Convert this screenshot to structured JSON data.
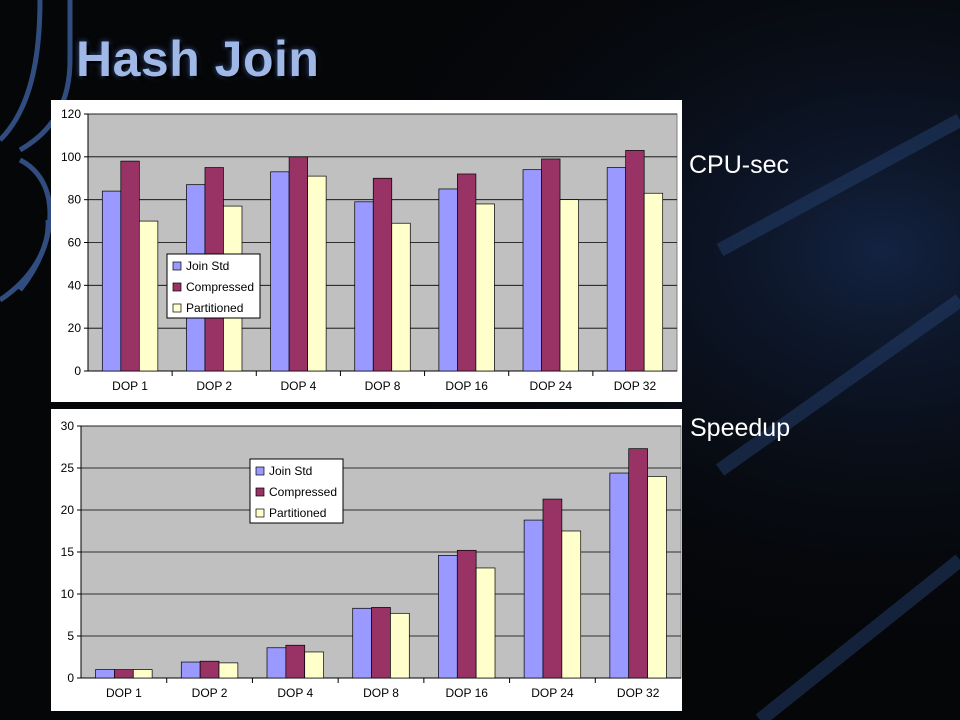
{
  "slide": {
    "title": "Hash Join",
    "label_cpu": "CPU-sec",
    "label_speedup": "Speedup"
  },
  "colors": {
    "background": "#050608",
    "plot_area": "#c0c0c0",
    "series": [
      "#9999ff",
      "#993366",
      "#ffffcc"
    ]
  },
  "chart_data": [
    {
      "type": "bar",
      "categories": [
        "DOP 1",
        "DOP 2",
        "DOP 4",
        "DOP 8",
        "DOP 16",
        "DOP 24",
        "DOP 32"
      ],
      "series": [
        {
          "name": "Join Std",
          "values": [
            84,
            87,
            93,
            79,
            85,
            94,
            95
          ]
        },
        {
          "name": "Compressed",
          "values": [
            98,
            95,
            100,
            90,
            92,
            99,
            103
          ]
        },
        {
          "name": "Partitioned",
          "values": [
            70,
            77,
            91,
            69,
            78,
            80,
            83
          ]
        }
      ],
      "title": "",
      "xlabel": "",
      "ylabel": "",
      "ylim": [
        0,
        120
      ],
      "yticks": [
        0,
        20,
        40,
        60,
        80,
        100,
        120
      ],
      "grid": true,
      "legend": "left-middle"
    },
    {
      "type": "bar",
      "categories": [
        "DOP 1",
        "DOP 2",
        "DOP 4",
        "DOP 8",
        "DOP 16",
        "DOP 24",
        "DOP 32"
      ],
      "series": [
        {
          "name": "Join Std",
          "values": [
            1,
            1.9,
            3.6,
            8.3,
            14.6,
            18.8,
            24.4
          ]
        },
        {
          "name": "Compressed",
          "values": [
            1,
            2.0,
            3.9,
            8.4,
            15.2,
            21.3,
            27.3
          ]
        },
        {
          "name": "Partitioned",
          "values": [
            1,
            1.8,
            3.1,
            7.7,
            13.1,
            17.5,
            24.0
          ]
        }
      ],
      "title": "",
      "xlabel": "",
      "ylabel": "",
      "ylim": [
        0,
        30
      ],
      "yticks": [
        0,
        5,
        10,
        15,
        20,
        25,
        30
      ],
      "grid": true,
      "legend": "top-left"
    }
  ]
}
